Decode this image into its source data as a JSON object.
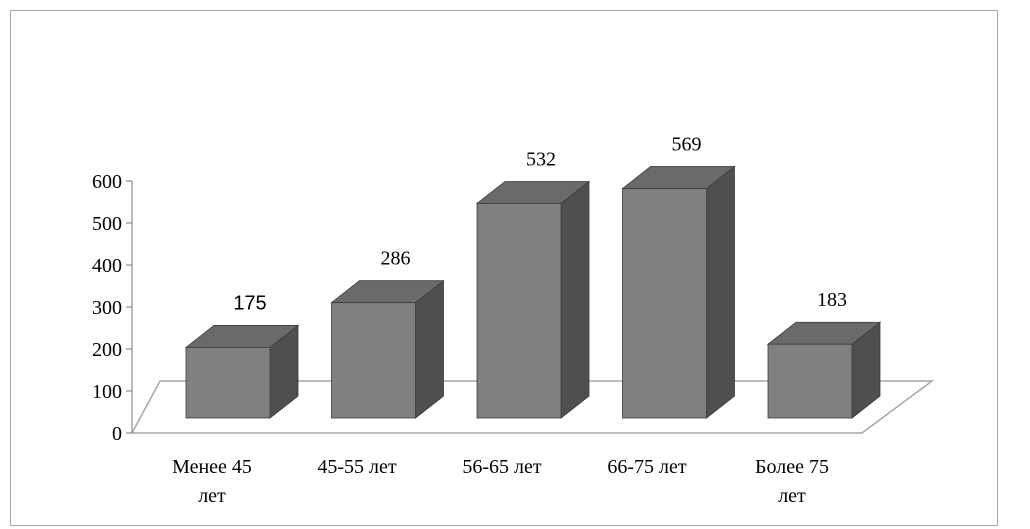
{
  "chart_data": {
    "type": "bar",
    "style": "3d-column",
    "categories": [
      "Менее 45 лет",
      "45-55 лет",
      "56-65 лет",
      "66-75 лет",
      "Более 75 лет"
    ],
    "category_lines": [
      [
        "Менее 45",
        "лет"
      ],
      [
        "45-55 лет"
      ],
      [
        "56-65 лет"
      ],
      [
        "66-75 лет"
      ],
      [
        "Более 75",
        "лет"
      ]
    ],
    "values": [
      175,
      286,
      532,
      569,
      183
    ],
    "data_labels": [
      "175",
      "286",
      "532",
      "569",
      "183"
    ],
    "title": "",
    "xlabel": "",
    "ylabel": "",
    "ylim": [
      0,
      600
    ],
    "yticks": [
      0,
      100,
      200,
      300,
      400,
      500,
      600
    ],
    "grid": false,
    "legend": "none",
    "colors": {
      "bar_front": "#808080",
      "bar_side": "#4f4f4f",
      "bar_top": "#6a6a6a",
      "bar_edge": "#3c3c3c",
      "floor_line": "#a6a6a6",
      "axis": "#8c8c8c",
      "frame": "#a6a6a6"
    }
  }
}
